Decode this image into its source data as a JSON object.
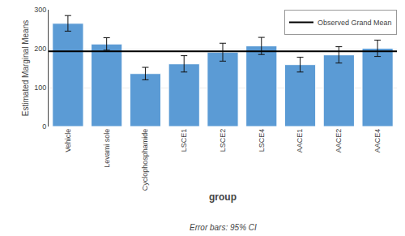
{
  "chart_data": {
    "type": "bar",
    "xlabel": "group",
    "ylabel": "Estimated Marginal Means",
    "footnote": "Error bars: 95% CI",
    "categories": [
      "Vehicle",
      "Levami sole",
      "Cyclophosphamide",
      "LSCE1",
      "LSCE2",
      "LSCE4",
      "AACE1",
      "AACE2",
      "AACE4"
    ],
    "values": [
      265,
      212,
      136,
      161,
      191,
      207,
      159,
      184,
      201
    ],
    "ci_lower": [
      245,
      196,
      120,
      140,
      168,
      185,
      140,
      163,
      180
    ],
    "ci_upper": [
      285,
      228,
      152,
      182,
      214,
      229,
      178,
      205,
      222
    ],
    "color": "#5B9BD5",
    "error_color": "#111111",
    "reference_line": {
      "name": "Observed Grand Mean",
      "value": 193,
      "color": "#000000"
    },
    "ylim": [
      0,
      300
    ],
    "yticks": [
      0,
      100,
      200,
      300
    ],
    "grid": true,
    "legend": "upper right"
  }
}
